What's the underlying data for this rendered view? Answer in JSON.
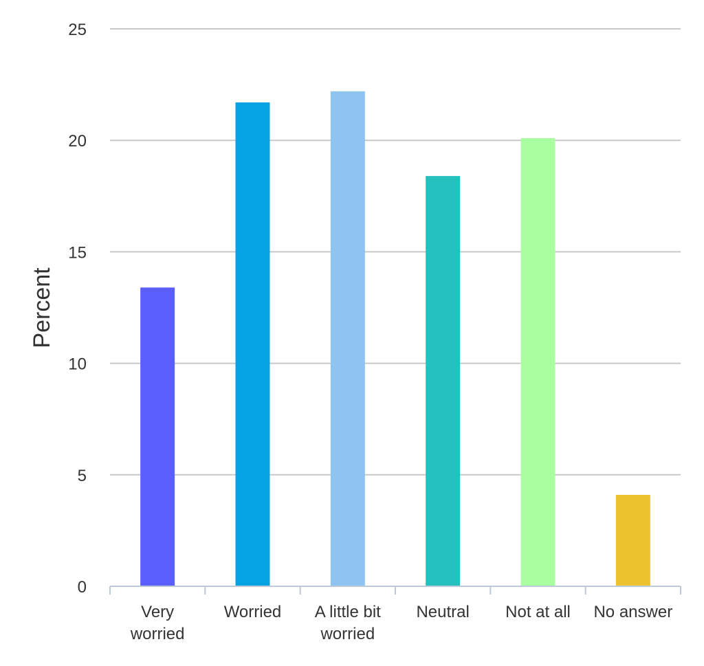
{
  "chart_data": {
    "type": "bar",
    "title": "",
    "xlabel": "",
    "ylabel": "Percent",
    "ylim": [
      0,
      25
    ],
    "yticks": [
      0,
      5,
      10,
      15,
      20,
      25
    ],
    "grid": true,
    "legend": "none",
    "categories": [
      [
        "Very",
        "worried"
      ],
      [
        "Worried"
      ],
      [
        "A little bit",
        "worried"
      ],
      [
        "Neutral"
      ],
      [
        "Not at all"
      ],
      [
        "No answer"
      ]
    ],
    "values": [
      13.4,
      21.7,
      22.2,
      18.4,
      20.1,
      4.1
    ],
    "colors": [
      "#5a5efa",
      "#06a3e3",
      "#8fc4f1",
      "#24c1bf",
      "#a9ffa0",
      "#ecc32e"
    ]
  }
}
